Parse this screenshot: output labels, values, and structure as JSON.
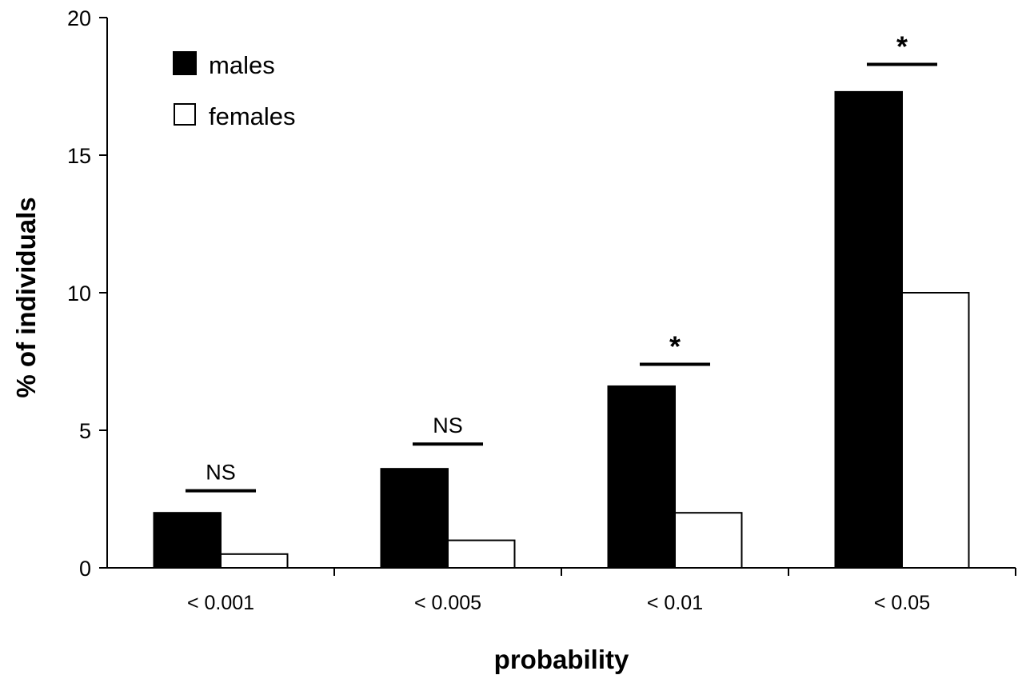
{
  "colors": {
    "males_fill": "#000000",
    "females_fill": "#ffffff",
    "stroke": "#000000"
  },
  "chart_data": {
    "type": "bar",
    "title": "",
    "xlabel": "probability",
    "ylabel": "% of individuals",
    "categories": [
      "< 0.001",
      "< 0.005",
      "< 0.01",
      "< 0.05"
    ],
    "series": [
      {
        "name": "males",
        "values": [
          2.0,
          3.6,
          6.6,
          17.3
        ]
      },
      {
        "name": "females",
        "values": [
          0.5,
          1.0,
          2.0,
          10.0
        ]
      }
    ],
    "ylim": [
      0,
      20
    ],
    "yticks": [
      0,
      5,
      10,
      15,
      20
    ],
    "grid": false,
    "legend_position": "top-left",
    "significance": [
      {
        "label": "NS",
        "level": 2.8
      },
      {
        "label": "NS",
        "level": 4.5
      },
      {
        "label": "*",
        "level": 7.4
      },
      {
        "label": "*",
        "level": 18.3
      }
    ]
  }
}
